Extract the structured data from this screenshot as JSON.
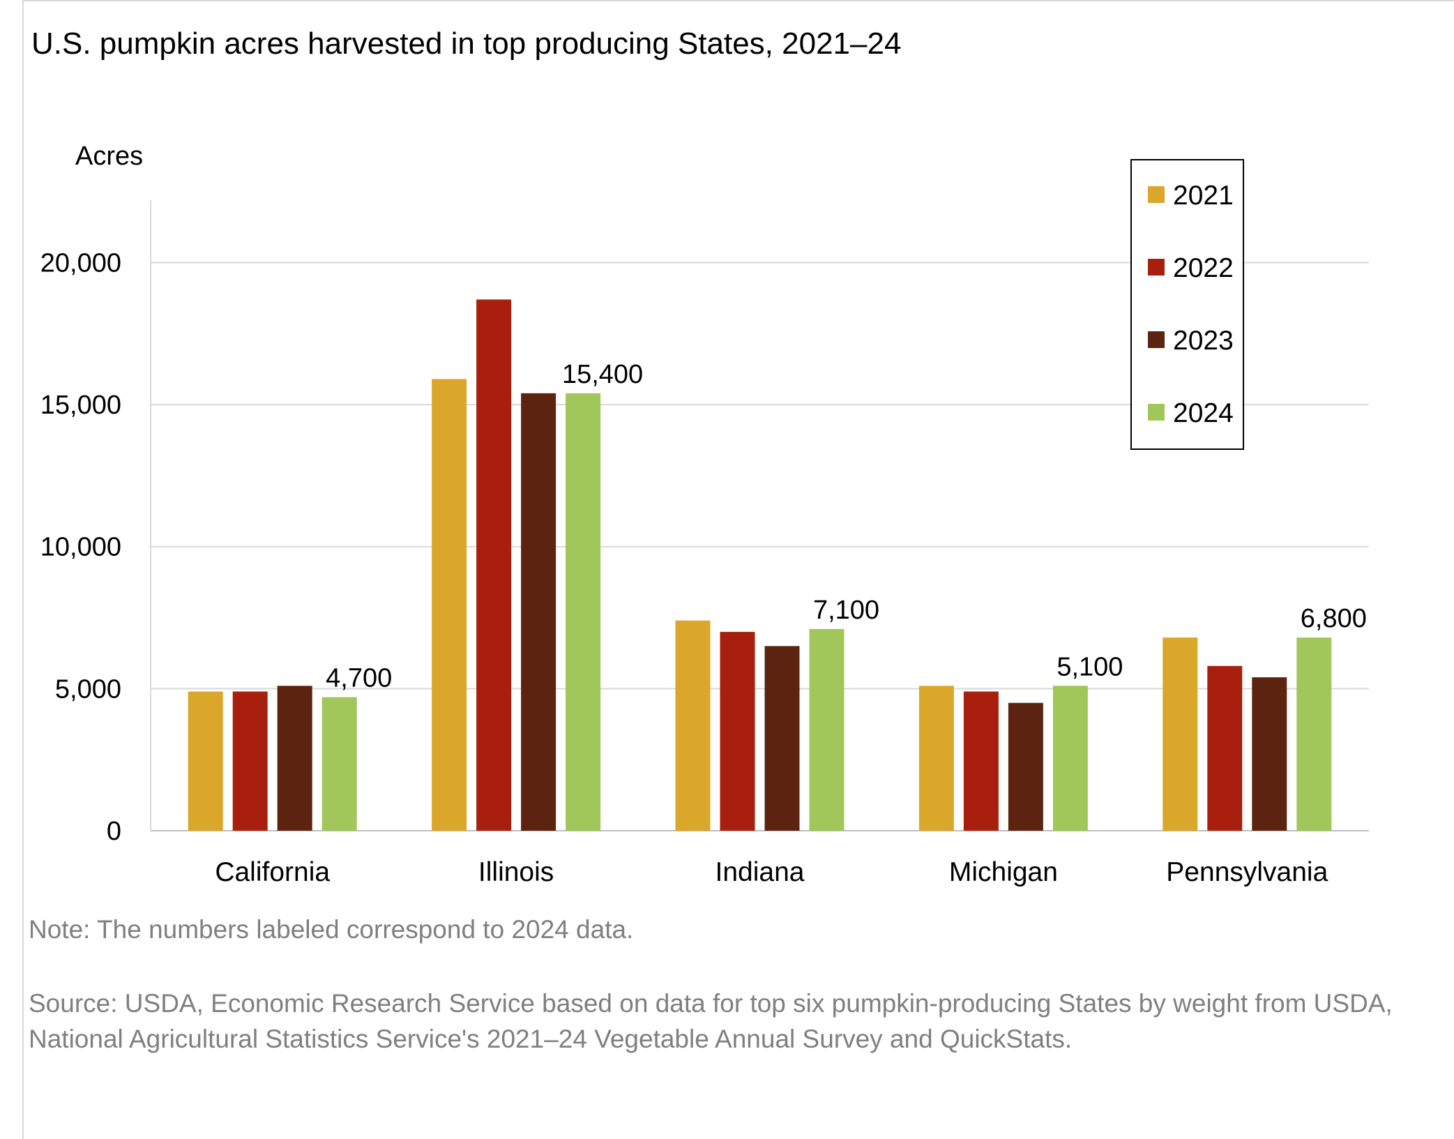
{
  "title": "U.S. pumpkin acres harvested in top producing States, 2021–24",
  "note": "Note: The numbers labeled correspond to 2024 data.",
  "source": "Source: USDA, Economic Research Service based on data for top six pumpkin-producing States by weight from USDA, National Agricultural Statistics Service's 2021–24 Vegetable Annual Survey and QuickStats.",
  "chart_data": {
    "type": "bar",
    "title": "U.S. pumpkin acres harvested in top producing States, 2021–24",
    "xlabel": "",
    "ylabel": "Acres",
    "categories": [
      "California",
      "Illinois",
      "Indiana",
      "Michigan",
      "Pennsylvania"
    ],
    "series": [
      {
        "name": "2021",
        "color": "#dba72a",
        "values": [
          4900,
          15900,
          7400,
          5100,
          6800
        ]
      },
      {
        "name": "2022",
        "color": "#a8200d",
        "values": [
          4900,
          18700,
          7000,
          4900,
          5800
        ]
      },
      {
        "name": "2023",
        "color": "#5c2410",
        "values": [
          5100,
          15400,
          6500,
          4500,
          5400
        ]
      },
      {
        "name": "2024",
        "color": "#a1c65a",
        "values": [
          4700,
          15400,
          7100,
          5100,
          6800
        ]
      }
    ],
    "data_labels": {
      "series": "2024",
      "labels": [
        "4,700",
        "15,400",
        "7,100",
        "5,100",
        "6,800"
      ]
    },
    "ylim": [
      0,
      22000
    ],
    "yticks": [
      0,
      5000,
      10000,
      15000,
      20000
    ],
    "ytick_labels": [
      "0",
      "5,000",
      "10,000",
      "15,000",
      "20,000"
    ],
    "grid": true,
    "legend_position": "top-right"
  }
}
